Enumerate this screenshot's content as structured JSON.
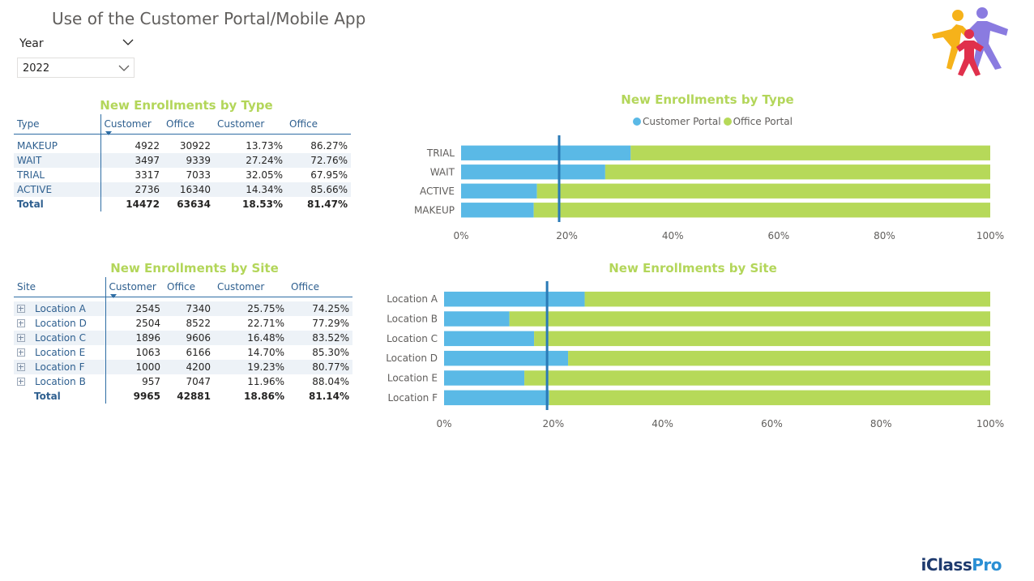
{
  "page_title": "Use of the Customer Portal/Mobile App",
  "slicer": {
    "label": "Year",
    "value": "2022"
  },
  "brand": {
    "name_prefix": "iClass",
    "name_suffix": "Pro",
    "color_prefix": "#1e3a6e",
    "color_suffix": "#2a8fd4",
    "logo": "people-logo"
  },
  "colors": {
    "customer_portal": "#5ab9e6",
    "office_portal": "#b6d959",
    "title_green": "#b3d65a",
    "header_blue": "#2e5f8f",
    "average_line": "#2a7ab6"
  },
  "table_type": {
    "title": "New Enrollments by Type",
    "headers": [
      "Type",
      "Customer",
      "Office",
      "Customer",
      "Office"
    ],
    "rows": [
      {
        "label": "MAKEUP",
        "customer": "4922",
        "office": "30922",
        "customer_pct": "13.73%",
        "office_pct": "86.27%"
      },
      {
        "label": "WAIT",
        "customer": "3497",
        "office": "9339",
        "customer_pct": "27.24%",
        "office_pct": "72.76%"
      },
      {
        "label": "TRIAL",
        "customer": "3317",
        "office": "7033",
        "customer_pct": "32.05%",
        "office_pct": "67.95%"
      },
      {
        "label": "ACTIVE",
        "customer": "2736",
        "office": "16340",
        "customer_pct": "14.34%",
        "office_pct": "85.66%"
      }
    ],
    "total": {
      "label": "Total",
      "customer": "14472",
      "office": "63634",
      "customer_pct": "18.53%",
      "office_pct": "81.47%"
    }
  },
  "table_site": {
    "title": "New Enrollments by Site",
    "headers": [
      "Site",
      "Customer",
      "Office",
      "Customer",
      "Office"
    ],
    "rows": [
      {
        "label": "Location A",
        "customer": "2545",
        "office": "7340",
        "customer_pct": "25.75%",
        "office_pct": "74.25%"
      },
      {
        "label": "Location D",
        "customer": "2504",
        "office": "8522",
        "customer_pct": "22.71%",
        "office_pct": "77.29%"
      },
      {
        "label": "Location C",
        "customer": "1896",
        "office": "9606",
        "customer_pct": "16.48%",
        "office_pct": "83.52%"
      },
      {
        "label": "Location E",
        "customer": "1063",
        "office": "6166",
        "customer_pct": "14.70%",
        "office_pct": "85.30%"
      },
      {
        "label": "Location F",
        "customer": "1000",
        "office": "4200",
        "customer_pct": "19.23%",
        "office_pct": "80.77%"
      },
      {
        "label": "Location B",
        "customer": "957",
        "office": "7047",
        "customer_pct": "11.96%",
        "office_pct": "88.04%"
      }
    ],
    "total": {
      "label": "Total",
      "customer": "9965",
      "office": "42881",
      "customer_pct": "18.86%",
      "office_pct": "81.14%"
    }
  },
  "chart_data": [
    {
      "type": "bar",
      "orientation": "horizontal",
      "stacked": "100%",
      "title": "New Enrollments by Type",
      "legend": "top-center",
      "categories": [
        "TRIAL",
        "WAIT",
        "ACTIVE",
        "MAKEUP"
      ],
      "series": [
        {
          "name": "Customer Portal",
          "values": [
            32.05,
            27.24,
            14.34,
            13.73
          ]
        },
        {
          "name": "Office Portal",
          "values": [
            67.95,
            72.76,
            85.66,
            86.27
          ]
        }
      ],
      "average_line": 18.53,
      "xlim": [
        0,
        100
      ],
      "xticks": [
        "0%",
        "20%",
        "40%",
        "60%",
        "80%",
        "100%"
      ],
      "grid": false
    },
    {
      "type": "bar",
      "orientation": "horizontal",
      "stacked": "100%",
      "title": "New Enrollments by Site",
      "categories": [
        "Location A",
        "Location B",
        "Location C",
        "Location D",
        "Location E",
        "Location F"
      ],
      "series": [
        {
          "name": "Customer Portal",
          "values": [
            25.75,
            11.96,
            16.48,
            22.71,
            14.7,
            19.23
          ]
        },
        {
          "name": "Office Portal",
          "values": [
            74.25,
            88.04,
            83.52,
            77.29,
            85.3,
            80.77
          ]
        }
      ],
      "average_line": 18.86,
      "xlim": [
        0,
        100
      ],
      "xticks": [
        "0%",
        "20%",
        "40%",
        "60%",
        "80%",
        "100%"
      ],
      "grid": false
    }
  ]
}
